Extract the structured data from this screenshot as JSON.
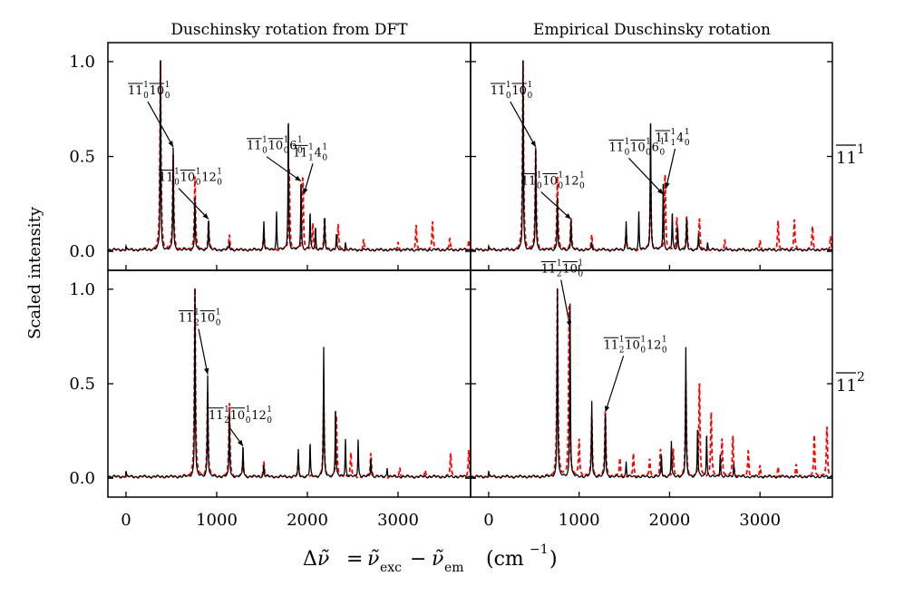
{
  "figure": {
    "ylabel": "Scaled intensity",
    "xlabel_parts": {
      "delta": "Δ",
      "nu": "ν̃",
      "equals": "=",
      "minus": "−",
      "exc": "exc",
      "em": "em",
      "unit_open": "(cm",
      "unit_exp": "−1",
      "unit_close": ")"
    },
    "col_titles": [
      "Duschinsky rotation from DFT",
      "Empirical Duschinsky rotation"
    ],
    "row_labels": [
      {
        "base": "11",
        "sup": "1"
      },
      {
        "base": "11",
        "sup": "2"
      }
    ],
    "x_ticks": [
      "0",
      "1000",
      "2000",
      "3000"
    ],
    "y_ticks": [
      "0.0",
      "0.5",
      "1.0"
    ],
    "colors": {
      "experiment": "#000000",
      "simulation": "#ff0000"
    }
  },
  "chart_data": [
    {
      "type": "line",
      "panel": "top-left",
      "title": "Duschinsky rotation from DFT",
      "xlim": [
        -200,
        3800
      ],
      "ylim": [
        -0.1,
        1.1
      ],
      "series": [
        {
          "name": "experiment",
          "style": "solid black",
          "peaks": [
            [
              0,
              0.02
            ],
            [
              380,
              1.0
            ],
            [
              520,
              0.54
            ],
            [
              760,
              0.28
            ],
            [
              910,
              0.17
            ],
            [
              1140,
              0.04
            ],
            [
              1520,
              0.15
            ],
            [
              1660,
              0.2
            ],
            [
              1790,
              0.73
            ],
            [
              1930,
              0.38
            ],
            [
              2030,
              0.2
            ],
            [
              2090,
              0.12
            ],
            [
              2190,
              0.17
            ],
            [
              2320,
              0.08
            ],
            [
              2420,
              0.04
            ]
          ]
        },
        {
          "name": "simulation",
          "style": "dashed red",
          "peaks": [
            [
              380,
              1.0
            ],
            [
              520,
              0.5
            ],
            [
              760,
              0.39
            ],
            [
              910,
              0.15
            ],
            [
              1140,
              0.08
            ],
            [
              1520,
              0.1
            ],
            [
              1800,
              0.43
            ],
            [
              1950,
              0.39
            ],
            [
              2060,
              0.14
            ],
            [
              2190,
              0.17
            ],
            [
              2340,
              0.13
            ],
            [
              2620,
              0.05
            ],
            [
              3000,
              0.04
            ],
            [
              3200,
              0.13
            ],
            [
              3380,
              0.15
            ],
            [
              3570,
              0.06
            ],
            [
              3780,
              0.05
            ]
          ]
        }
      ],
      "annotations": [
        {
          "parts": [
            [
              "11",
              "1",
              "0"
            ],
            [
              "10",
              "",
              "0",
              "1"
            ]
          ],
          "target": [
            520,
            0.55
          ]
        },
        {
          "parts": [
            [
              "11",
              "1",
              "0"
            ],
            [
              "10",
              "",
              "0",
              "1"
            ],
            [
              "12",
              "",
              "0",
              "1",
              false
            ]
          ],
          "target": [
            910,
            0.17
          ]
        },
        {
          "parts": [
            [
              "11",
              "1",
              "0"
            ],
            [
              "10",
              "",
              "0",
              "1"
            ],
            [
              "6",
              "",
              "0",
              "1",
              false
            ]
          ],
          "target": [
            1930,
            0.37
          ]
        },
        {
          "parts": [
            [
              "11",
              "1",
              "1"
            ],
            [
              "4",
              "",
              "0",
              "1",
              false
            ]
          ],
          "target": [
            1960,
            0.3
          ]
        }
      ]
    },
    {
      "type": "line",
      "panel": "top-right",
      "title": "Empirical Duschinsky rotation",
      "xlim": [
        -200,
        3800
      ],
      "ylim": [
        -0.1,
        1.1
      ],
      "series": [
        {
          "name": "experiment",
          "style": "solid black",
          "peaks": [
            [
              0,
              0.02
            ],
            [
              380,
              1.0
            ],
            [
              520,
              0.54
            ],
            [
              760,
              0.28
            ],
            [
              910,
              0.17
            ],
            [
              1140,
              0.04
            ],
            [
              1520,
              0.15
            ],
            [
              1660,
              0.2
            ],
            [
              1790,
              0.73
            ],
            [
              1930,
              0.38
            ],
            [
              2030,
              0.2
            ],
            [
              2090,
              0.12
            ],
            [
              2190,
              0.17
            ],
            [
              2320,
              0.08
            ],
            [
              2420,
              0.04
            ]
          ]
        },
        {
          "name": "simulation",
          "style": "dashed red",
          "peaks": [
            [
              380,
              1.0
            ],
            [
              520,
              0.53
            ],
            [
              760,
              0.39
            ],
            [
              910,
              0.17
            ],
            [
              1140,
              0.08
            ],
            [
              1520,
              0.1
            ],
            [
              1790,
              0.4
            ],
            [
              1950,
              0.41
            ],
            [
              2080,
              0.17
            ],
            [
              2190,
              0.17
            ],
            [
              2330,
              0.16
            ],
            [
              2610,
              0.05
            ],
            [
              3000,
              0.05
            ],
            [
              3200,
              0.15
            ],
            [
              3380,
              0.16
            ],
            [
              3580,
              0.12
            ],
            [
              3780,
              0.07
            ]
          ]
        }
      ],
      "annotations": [
        {
          "parts": [
            [
              "11",
              "1",
              "0"
            ],
            [
              "10",
              "",
              "0",
              "1"
            ]
          ],
          "target": [
            520,
            0.55
          ]
        },
        {
          "parts": [
            [
              "11",
              "1",
              "0"
            ],
            [
              "10",
              "",
              "0",
              "1"
            ],
            [
              "12",
              "",
              "0",
              "1",
              false
            ]
          ],
          "target": [
            910,
            0.17
          ]
        },
        {
          "parts": [
            [
              "11",
              "1",
              "0"
            ],
            [
              "10",
              "",
              "0",
              "1"
            ],
            [
              "6",
              "",
              "0",
              "1",
              false
            ]
          ],
          "target": [
            1930,
            0.3
          ]
        },
        {
          "parts": [
            [
              "11",
              "1",
              "1"
            ],
            [
              "4",
              "",
              "0",
              "1",
              false
            ]
          ],
          "target": [
            1960,
            0.33
          ]
        }
      ]
    },
    {
      "type": "line",
      "panel": "bottom-left",
      "title": "",
      "xlim": [
        -200,
        3800
      ],
      "ylim": [
        -0.1,
        1.1
      ],
      "series": [
        {
          "name": "experiment",
          "style": "solid black",
          "peaks": [
            [
              0,
              0.03
            ],
            [
              760,
              1.0
            ],
            [
              900,
              0.54
            ],
            [
              1140,
              0.34
            ],
            [
              1290,
              0.17
            ],
            [
              1520,
              0.06
            ],
            [
              1900,
              0.14
            ],
            [
              2030,
              0.18
            ],
            [
              2180,
              0.68
            ],
            [
              2310,
              0.38
            ],
            [
              2420,
              0.2
            ],
            [
              2560,
              0.2
            ],
            [
              2700,
              0.1
            ],
            [
              2880,
              0.05
            ]
          ]
        },
        {
          "name": "simulation",
          "style": "dashed red",
          "peaks": [
            [
              760,
              1.0
            ],
            [
              900,
              0.45
            ],
            [
              1140,
              0.39
            ],
            [
              1290,
              0.1
            ],
            [
              1520,
              0.08
            ],
            [
              1900,
              0.08
            ],
            [
              2180,
              0.42
            ],
            [
              2320,
              0.32
            ],
            [
              2480,
              0.12
            ],
            [
              2700,
              0.13
            ],
            [
              3020,
              0.05
            ],
            [
              3300,
              0.03
            ],
            [
              3580,
              0.12
            ],
            [
              3780,
              0.14
            ]
          ]
        }
      ],
      "annotations": [
        {
          "parts": [
            [
              "11",
              "1",
              "2"
            ],
            [
              "10",
              "",
              "0",
              "1"
            ]
          ],
          "target": [
            900,
            0.55
          ]
        },
        {
          "parts": [
            [
              "11",
              "1",
              "2"
            ],
            [
              "10",
              "",
              "0",
              "1"
            ],
            [
              "12",
              "",
              "0",
              "1",
              false
            ]
          ],
          "target": [
            1290,
            0.17
          ]
        }
      ]
    },
    {
      "type": "line",
      "panel": "bottom-right",
      "title": "",
      "xlim": [
        -200,
        3800
      ],
      "ylim": [
        -0.1,
        1.1
      ],
      "series": [
        {
          "name": "experiment",
          "style": "solid black",
          "peaks": [
            [
              0,
              0.03
            ],
            [
              760,
              1.0
            ],
            [
              900,
              0.92
            ],
            [
              1140,
              0.4
            ],
            [
              1290,
              0.36
            ],
            [
              1520,
              0.08
            ],
            [
              1910,
              0.12
            ],
            [
              2020,
              0.19
            ],
            [
              2180,
              0.68
            ],
            [
              2310,
              0.27
            ],
            [
              2410,
              0.24
            ],
            [
              2560,
              0.12
            ],
            [
              2710,
              0.07
            ]
          ]
        },
        {
          "name": "simulation",
          "style": "dashed red",
          "peaks": [
            [
              760,
              1.0
            ],
            [
              890,
              0.93
            ],
            [
              1000,
              0.2
            ],
            [
              1140,
              0.32
            ],
            [
              1290,
              0.35
            ],
            [
              1450,
              0.1
            ],
            [
              1600,
              0.12
            ],
            [
              1780,
              0.1
            ],
            [
              1900,
              0.14
            ],
            [
              2040,
              0.14
            ],
            [
              2180,
              0.5
            ],
            [
              2330,
              0.5
            ],
            [
              2460,
              0.34
            ],
            [
              2580,
              0.2
            ],
            [
              2700,
              0.22
            ],
            [
              2870,
              0.14
            ],
            [
              3000,
              0.06
            ],
            [
              3200,
              0.05
            ],
            [
              3400,
              0.06
            ],
            [
              3600,
              0.22
            ],
            [
              3740,
              0.26
            ]
          ]
        }
      ],
      "annotations": [
        {
          "parts": [
            [
              "11",
              "1",
              "2"
            ],
            [
              "10",
              "",
              "0",
              "1"
            ]
          ],
          "target": [
            900,
            0.8
          ]
        },
        {
          "parts": [
            [
              "11",
              "1",
              "2"
            ],
            [
              "10",
              "",
              "0",
              "1"
            ],
            [
              "12",
              "",
              "0",
              "1",
              false
            ]
          ],
          "target": [
            1290,
            0.35
          ]
        }
      ]
    }
  ]
}
